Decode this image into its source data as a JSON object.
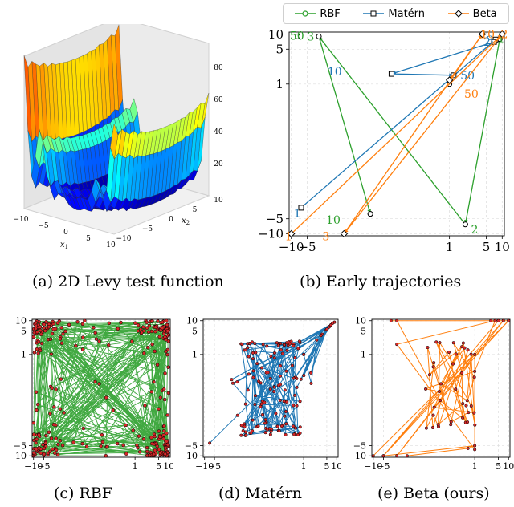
{
  "captions": {
    "a": "(a) 2D Levy test function",
    "b": "(b) Early trajectories",
    "c": "(c) RBF",
    "d": "(d) Matérn",
    "e": "(e) Beta (ours)"
  },
  "colors": {
    "RBF": "#2ca02c",
    "Matern": "#1f77b4",
    "Beta": "#ff7f0e",
    "points": "#d62728"
  },
  "chart_data": [
    {
      "type": "surface",
      "panel": "a",
      "xlabel": "x1",
      "ylabel": "x2",
      "x_ticks": [
        "−10",
        "−5",
        "0",
        "5",
        "10"
      ],
      "y_ticks": [
        "−10",
        "−5",
        "0",
        "5",
        "10"
      ],
      "z_ticks": [
        "20",
        "40",
        "60",
        "80"
      ],
      "zlim": [
        0,
        95
      ]
    },
    {
      "type": "line",
      "panel": "b",
      "axis_scale": "symlog",
      "tick_values": [
        -10,
        -5,
        1,
        5,
        10
      ],
      "x_tick_labels": [
        "−10",
        "−5",
        "1",
        "5",
        "10"
      ],
      "y_tick_labels": [
        "−10",
        "−5",
        "1",
        "5",
        "10"
      ],
      "grid": true,
      "legend": [
        "RBF",
        "Matérn",
        "Beta"
      ],
      "legend_position": "top",
      "series": [
        {
          "name": "RBF",
          "points": [
            [
              9,
              8
            ],
            [
              2,
              -6.5
            ],
            [
              -3,
              9
            ],
            [
              -0.5,
              -4
            ]
          ],
          "labels": [
            {
              "text": "1",
              "at": [
                9.6,
                8.4
              ]
            },
            {
              "text": "2",
              "at": [
                3,
                -8.2
              ]
            },
            {
              "text": "3",
              "at": [
                -4.3,
                9
              ]
            },
            {
              "text": "10",
              "at": [
                -1.6,
                -5.2
              ]
            },
            {
              "text": "50",
              "at": [
                -7.8,
                9.3
              ]
            }
          ],
          "extra_points": [
            [
              -0.5,
              -4
            ],
            [
              -7.6,
              9
            ],
            [
              1,
              1
            ]
          ]
        },
        {
          "name": "Matérn",
          "points": [
            [
              -6.5,
              -3
            ],
            [
              7.5,
              7.8
            ],
            [
              7,
              7
            ],
            [
              -0.1,
              1.6
            ],
            [
              1.2,
              1.5
            ]
          ],
          "labels": [
            {
              "text": "1",
              "at": [
                -7.7,
                -3.8
              ]
            },
            {
              "text": "2",
              "at": [
                5.2,
                7
              ]
            },
            {
              "text": "3",
              "at": [
                5.9,
                7.6
              ]
            },
            {
              "text": "10",
              "at": [
                -1.5,
                1.8
              ]
            },
            {
              "text": "50",
              "at": [
                2.2,
                1.5
              ]
            }
          ]
        },
        {
          "name": "Beta",
          "points": [
            [
              -10,
              -10
            ],
            [
              10,
              10
            ],
            [
              -1,
              -10
            ],
            [
              4.2,
              10
            ],
            [
              1,
              1.2
            ]
          ],
          "labels": [
            {
              "text": "1",
              "at": [
                -11.3,
                -11.3
              ]
            },
            {
              "text": "2",
              "at": [
                11,
                10
              ]
            },
            {
              "text": "3",
              "at": [
                -2.2,
                -11.2
              ]
            },
            {
              "text": "10",
              "at": [
                5.3,
                10
              ]
            },
            {
              "text": "50",
              "at": [
                2.6,
                0.8
              ]
            }
          ]
        }
      ]
    },
    {
      "type": "scatter",
      "panel": "c",
      "series_name": "RBF",
      "axis_scale": "symlog",
      "x_tick_labels": [
        "−10",
        "−5",
        "1",
        "5",
        "10"
      ],
      "y_tick_labels": [
        "−10",
        "−5",
        "1",
        "5",
        "10"
      ],
      "xlim": [
        -11,
        11
      ],
      "ylim": [
        -11,
        11
      ],
      "description_points": "about 300 points spread uniformly over [-10,10]^2 joined in sequence"
    },
    {
      "type": "scatter",
      "panel": "d",
      "series_name": "Matérn",
      "axis_scale": "symlog",
      "x_tick_labels": [
        "−10",
        "−5",
        "1",
        "5",
        "10"
      ],
      "y_tick_labels": [
        "−10",
        "−5",
        "1",
        "5",
        "10"
      ],
      "xlim": [
        -11,
        11
      ],
      "ylim": [
        -11,
        11
      ],
      "key_points": [
        [
          -7,
          -4.2
        ],
        [
          8.5,
          9
        ],
        [
          1,
          1
        ]
      ]
    },
    {
      "type": "scatter",
      "panel": "e",
      "series_name": "Beta",
      "axis_scale": "symlog",
      "x_tick_labels": [
        "−10",
        "−5",
        "1",
        "5",
        "10"
      ],
      "y_tick_labels": [
        "−10",
        "−5",
        "1",
        "5",
        "10"
      ],
      "xlim": [
        -11,
        11
      ],
      "ylim": [
        -11,
        11
      ],
      "key_points": [
        [
          -10,
          -10
        ],
        [
          10,
          10
        ],
        [
          -3,
          10
        ],
        [
          -5,
          -10
        ],
        [
          -2,
          -10
        ],
        [
          1,
          1
        ],
        [
          1,
          -6.5
        ]
      ]
    }
  ],
  "legend_items": [
    {
      "label": "RBF",
      "marker": "circle"
    },
    {
      "label": "Matérn",
      "marker": "square"
    },
    {
      "label": "Beta",
      "marker": "diamond"
    }
  ]
}
